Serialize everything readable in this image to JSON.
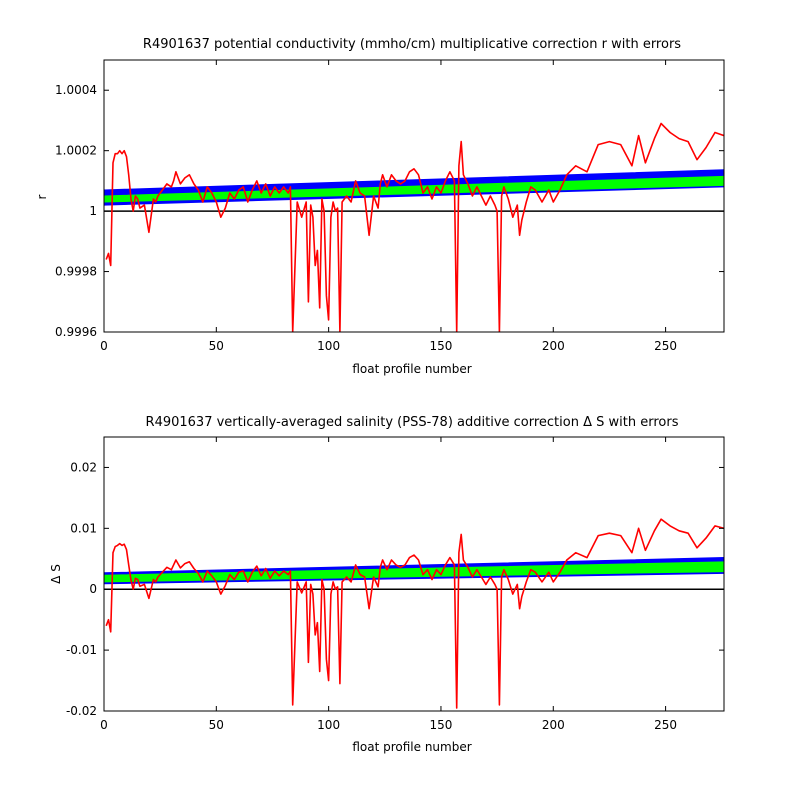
{
  "figure": {
    "background": "#ffffff"
  },
  "chart_data": [
    {
      "type": "line",
      "title": "R4901637 potential conductivity (mmho/cm) multiplicative correction r with errors",
      "xlabel": "float profile number",
      "ylabel": "r",
      "xlim": [
        0,
        276
      ],
      "ylim": [
        0.9996,
        1.0005
      ],
      "xticks": [
        0,
        50,
        100,
        150,
        200,
        250
      ],
      "xtick_labels": [
        "0",
        "50",
        "100",
        "150",
        "200",
        "250"
      ],
      "yticks": [
        0.9996,
        0.9998,
        1.0,
        1.0002,
        1.0004
      ],
      "ytick_labels": [
        "0.9996",
        "0.9998",
        "1",
        "1.0002",
        "1.0004"
      ],
      "grid": false,
      "reference_line": {
        "y": 1.0,
        "color": "#000000"
      },
      "bands": [
        {
          "color": "#0000ff",
          "x": [
            0,
            276
          ],
          "lower": [
            1.00002,
            1.00008
          ],
          "upper": [
            1.00007,
            1.000137
          ]
        },
        {
          "color": "#00ff00",
          "x": [
            0,
            276
          ],
          "lower": [
            1.00003,
            1.000085
          ],
          "upper": [
            1.00005,
            1.000115
          ]
        }
      ],
      "series": [
        {
          "color": "#ff0000",
          "x": [
            1,
            2,
            3,
            4,
            5,
            6,
            7,
            8,
            9,
            10,
            11,
            12,
            13,
            14,
            15,
            16,
            18,
            20,
            22,
            23,
            24,
            26,
            28,
            30,
            31,
            32,
            34,
            36,
            38,
            40,
            42,
            44,
            46,
            48,
            50,
            52,
            54,
            56,
            58,
            60,
            62,
            64,
            66,
            68,
            70,
            72,
            74,
            76,
            78,
            80,
            82,
            83,
            84,
            86,
            88,
            90,
            91,
            92,
            93,
            94,
            95,
            96,
            97,
            98,
            99,
            100,
            101,
            102,
            103,
            104,
            105,
            106,
            108,
            110,
            112,
            114,
            116,
            118,
            120,
            122,
            123,
            124,
            126,
            128,
            130,
            132,
            134,
            136,
            138,
            140,
            142,
            144,
            146,
            148,
            150,
            152,
            154,
            156,
            157,
            158,
            159,
            160,
            162,
            164,
            166,
            168,
            170,
            172,
            174,
            175,
            176,
            177,
            178,
            180,
            182,
            184,
            185,
            186,
            188,
            190,
            192,
            195,
            198,
            200,
            203,
            206,
            210,
            215,
            220,
            225,
            230,
            235,
            238,
            241,
            245,
            248,
            252,
            256,
            260,
            264,
            268,
            272,
            276
          ],
          "y": [
            0.99984,
            0.99986,
            0.99982,
            1.00016,
            1.00019,
            1.00019,
            1.0002,
            1.00019,
            1.0002,
            1.00018,
            1.00012,
            1.00004,
            1.0,
            1.00005,
            1.00004,
            1.00001,
            1.00002,
            0.99993,
            1.00004,
            1.00003,
            1.00005,
            1.00007,
            1.00009,
            1.00008,
            1.0001,
            1.00013,
            1.00009,
            1.00011,
            1.00012,
            1.00009,
            1.00007,
            1.00003,
            1.00008,
            1.00006,
            1.00003,
            0.99998,
            1.00001,
            1.00006,
            1.00004,
            1.00007,
            1.00008,
            1.00003,
            1.00007,
            1.0001,
            1.00006,
            1.00009,
            1.00005,
            1.00008,
            1.00006,
            1.00008,
            1.00006,
            1.00008,
            0.9996,
            1.00003,
            0.99998,
            1.00003,
            0.9997,
            1.00002,
            0.99998,
            0.99982,
            0.99987,
            0.99968,
            1.00004,
            1.0,
            0.99972,
            0.99964,
            0.99998,
            1.00003,
            1.0,
            1.00001,
            0.9996,
            1.00003,
            1.00005,
            1.00003,
            1.0001,
            1.00006,
            1.00005,
            0.99992,
            1.00005,
            1.00001,
            1.00009,
            1.00012,
            1.00008,
            1.00012,
            1.0001,
            1.00009,
            1.0001,
            1.00013,
            1.00014,
            1.00012,
            1.00006,
            1.00008,
            1.00004,
            1.00008,
            1.00006,
            1.0001,
            1.00013,
            1.0001,
            0.9996,
            1.00015,
            1.00023,
            1.00012,
            1.00009,
            1.00005,
            1.00008,
            1.00005,
            1.00002,
            1.00005,
            1.00002,
            1.0,
            0.9996,
            1.00005,
            1.00008,
            1.00004,
            0.99998,
            1.00002,
            0.99992,
            0.99997,
            1.00003,
            1.00008,
            1.00007,
            1.00003,
            1.00007,
            1.00003,
            1.00007,
            1.00012,
            1.00015,
            1.00013,
            1.00022,
            1.00023,
            1.00022,
            1.00015,
            1.00025,
            1.00016,
            1.00024,
            1.00029,
            1.00026,
            1.00024,
            1.00023,
            1.00017,
            1.00021,
            1.00026,
            1.00025
          ]
        }
      ]
    },
    {
      "type": "line",
      "title": "R4901637 vertically-averaged salinity (PSS-78) additive correction Δ S with errors",
      "xlabel": "float profile number",
      "ylabel": "Δ S",
      "xlim": [
        0,
        276
      ],
      "ylim": [
        -0.02,
        0.025
      ],
      "xticks": [
        0,
        50,
        100,
        150,
        200,
        250
      ],
      "xtick_labels": [
        "0",
        "50",
        "100",
        "150",
        "200",
        "250"
      ],
      "yticks": [
        -0.02,
        -0.01,
        0.0,
        0.01,
        0.02
      ],
      "ytick_labels": [
        "-0.02",
        "-0.01",
        "0",
        "0.01",
        "0.02"
      ],
      "grid": false,
      "reference_line": {
        "y": 0.0,
        "color": "#000000"
      },
      "bands": [
        {
          "color": "#0000ff",
          "x": [
            0,
            276
          ],
          "lower": [
            0.0009,
            0.0026
          ],
          "upper": [
            0.0027,
            0.0052
          ]
        },
        {
          "color": "#00ff00",
          "x": [
            0,
            276
          ],
          "lower": [
            0.0012,
            0.0029
          ],
          "upper": [
            0.0023,
            0.0045
          ]
        }
      ],
      "series": [
        {
          "color": "#ff0000",
          "x": [
            1,
            2,
            3,
            4,
            5,
            6,
            7,
            8,
            9,
            10,
            11,
            12,
            13,
            14,
            15,
            16,
            18,
            20,
            22,
            23,
            24,
            26,
            28,
            30,
            31,
            32,
            34,
            36,
            38,
            40,
            42,
            44,
            46,
            48,
            50,
            52,
            54,
            56,
            58,
            60,
            62,
            64,
            66,
            68,
            70,
            72,
            74,
            76,
            78,
            80,
            82,
            83,
            84,
            86,
            88,
            90,
            91,
            92,
            93,
            94,
            95,
            96,
            97,
            98,
            99,
            100,
            101,
            102,
            103,
            104,
            105,
            106,
            108,
            110,
            112,
            114,
            116,
            118,
            120,
            122,
            123,
            124,
            126,
            128,
            130,
            132,
            134,
            136,
            138,
            140,
            142,
            144,
            146,
            148,
            150,
            152,
            154,
            156,
            157,
            158,
            159,
            160,
            162,
            164,
            166,
            168,
            170,
            172,
            174,
            175,
            176,
            177,
            178,
            180,
            182,
            184,
            185,
            186,
            188,
            190,
            192,
            195,
            198,
            200,
            203,
            206,
            210,
            215,
            220,
            225,
            230,
            235,
            238,
            241,
            245,
            248,
            252,
            256,
            260,
            264,
            268,
            272,
            276
          ],
          "y": [
            -0.006,
            -0.005,
            -0.007,
            0.006,
            0.007,
            0.0072,
            0.0075,
            0.0072,
            0.0074,
            0.0065,
            0.004,
            0.0015,
            0.0,
            0.0018,
            0.0016,
            0.0005,
            0.0008,
            -0.0015,
            0.0016,
            0.0012,
            0.002,
            0.0028,
            0.0036,
            0.0032,
            0.004,
            0.0048,
            0.0035,
            0.0042,
            0.0045,
            0.0034,
            0.0026,
            0.0012,
            0.003,
            0.0022,
            0.0012,
            -0.0008,
            0.0006,
            0.0024,
            0.0016,
            0.0028,
            0.003,
            0.0012,
            0.0028,
            0.0038,
            0.0022,
            0.0034,
            0.0018,
            0.003,
            0.0022,
            0.003,
            0.0024,
            0.003,
            -0.019,
            0.0012,
            -0.0006,
            0.0012,
            -0.012,
            0.0008,
            -0.0008,
            -0.0075,
            -0.0055,
            -0.0135,
            0.0016,
            0.0,
            -0.0115,
            -0.015,
            -0.0008,
            0.0012,
            0.0,
            0.0004,
            -0.0155,
            0.0012,
            0.002,
            0.0012,
            0.004,
            0.0024,
            0.002,
            -0.0032,
            0.002,
            0.0004,
            0.0036,
            0.0048,
            0.0032,
            0.0048,
            0.004,
            0.0036,
            0.004,
            0.0052,
            0.0056,
            0.0048,
            0.0024,
            0.0032,
            0.0016,
            0.0032,
            0.0024,
            0.004,
            0.0052,
            0.004,
            -0.0195,
            0.006,
            0.009,
            0.0048,
            0.0036,
            0.002,
            0.0032,
            0.002,
            0.0008,
            0.002,
            0.0008,
            0.0,
            -0.019,
            0.002,
            0.0032,
            0.0016,
            -0.0008,
            0.0008,
            -0.0032,
            -0.0012,
            0.0012,
            0.0032,
            0.0028,
            0.0012,
            0.0028,
            0.0012,
            0.0028,
            0.0048,
            0.006,
            0.0052,
            0.0088,
            0.0092,
            0.0088,
            0.006,
            0.01,
            0.0064,
            0.0096,
            0.0115,
            0.0104,
            0.0096,
            0.0092,
            0.0068,
            0.0084,
            0.0104,
            0.01
          ]
        }
      ]
    }
  ]
}
